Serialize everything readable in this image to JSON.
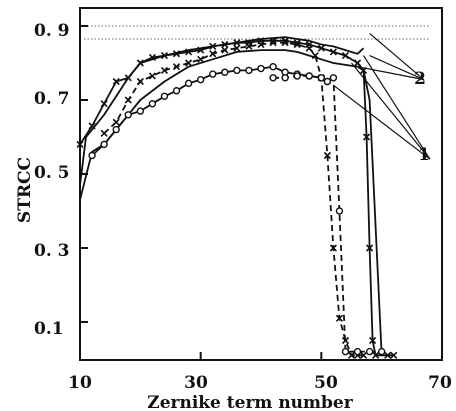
{
  "chart_data": {
    "type": "line",
    "title": "",
    "xlabel": "Zernike term number",
    "ylabel": "STRCC",
    "xlim": [
      10,
      70
    ],
    "ylim": [
      0,
      0.9
    ],
    "xticks": [
      10,
      30,
      50,
      70
    ],
    "xtick_labels": [
      "10",
      "30",
      "50",
      "70"
    ],
    "yticks": [
      0.1,
      0.3,
      0.5,
      0.7,
      0.9
    ],
    "ytick_labels": [
      "0.1",
      "0. 3",
      "0. 5",
      "0. 7",
      "0. 9"
    ],
    "grid": false,
    "legend": "none",
    "reference_lines": [
      0.9,
      0.865
    ],
    "series": [
      {
        "style": "solid",
        "marker": "none",
        "x": [
          10,
          11,
          12,
          14,
          16,
          18,
          20,
          24,
          28,
          32,
          36,
          40,
          44,
          46,
          48,
          50,
          52,
          54,
          56,
          57
        ],
        "y": [
          0.47,
          0.6,
          0.62,
          0.66,
          0.71,
          0.76,
          0.8,
          0.82,
          0.835,
          0.845,
          0.855,
          0.865,
          0.87,
          0.865,
          0.86,
          0.85,
          0.845,
          0.835,
          0.825,
          0.84
        ]
      },
      {
        "style": "solid",
        "marker": "x",
        "x": [
          10,
          12,
          14,
          16,
          18,
          20,
          22,
          24,
          26,
          28,
          30,
          32,
          34,
          36,
          38,
          40,
          42,
          44,
          46,
          48,
          50,
          52,
          54,
          56,
          57,
          57.5,
          58,
          58.5,
          59,
          61,
          62
        ],
        "y": [
          0.58,
          0.63,
          0.69,
          0.75,
          0.76,
          0.8,
          0.815,
          0.82,
          0.825,
          0.83,
          0.835,
          0.845,
          0.85,
          0.855,
          0.855,
          0.86,
          0.86,
          0.86,
          0.855,
          0.85,
          0.84,
          0.83,
          0.82,
          0.8,
          0.78,
          0.6,
          0.3,
          0.05,
          0.01,
          0.01,
          0.01
        ]
      },
      {
        "style": "solid",
        "marker": "none",
        "x": [
          10,
          12,
          14,
          16,
          18,
          20,
          24,
          28,
          32,
          36,
          40,
          44,
          46,
          48,
          50,
          52,
          54,
          56,
          57,
          58,
          60
        ],
        "y": [
          0.43,
          0.56,
          0.58,
          0.62,
          0.66,
          0.7,
          0.75,
          0.79,
          0.81,
          0.83,
          0.835,
          0.835,
          0.83,
          0.82,
          0.81,
          0.8,
          0.795,
          0.79,
          0.78,
          0.7,
          0.01
        ]
      },
      {
        "style": "dashed",
        "marker": "x",
        "x": [
          14,
          16,
          18,
          20,
          22,
          24,
          26,
          28,
          30,
          32,
          34,
          36,
          38,
          40,
          42,
          44,
          46,
          48,
          49,
          50,
          51,
          52,
          53,
          54,
          55,
          56,
          57
        ],
        "y": [
          0.61,
          0.64,
          0.7,
          0.75,
          0.765,
          0.78,
          0.79,
          0.8,
          0.81,
          0.825,
          0.835,
          0.84,
          0.845,
          0.85,
          0.855,
          0.855,
          0.85,
          0.84,
          0.82,
          0.76,
          0.55,
          0.3,
          0.11,
          0.05,
          0.01,
          0.01,
          0.01
        ]
      },
      {
        "style": "solid",
        "marker": "o",
        "x": [
          12,
          14,
          16,
          18,
          20,
          22,
          24,
          26,
          28,
          30,
          32,
          34,
          36,
          38,
          40,
          42,
          44,
          46,
          48,
          50,
          51
        ],
        "y": [
          0.55,
          0.58,
          0.62,
          0.66,
          0.67,
          0.69,
          0.71,
          0.725,
          0.745,
          0.755,
          0.77,
          0.775,
          0.78,
          0.78,
          0.785,
          0.79,
          0.775,
          0.77,
          0.765,
          0.76,
          0.75
        ]
      },
      {
        "style": "dashed",
        "marker": "o",
        "x": [
          42,
          44,
          46,
          48,
          50,
          51,
          52,
          53,
          54,
          56,
          58,
          60
        ],
        "y": [
          0.76,
          0.76,
          0.765,
          0.765,
          0.76,
          0.75,
          0.76,
          0.4,
          0.02,
          0.02,
          0.02,
          0.02
        ]
      }
    ],
    "annotations": [
      {
        "text": "2",
        "x": 67,
        "y": 0.755,
        "targets": [
          [
            58,
            0.88
          ],
          [
            58,
            0.82
          ],
          [
            56,
            0.79
          ]
        ]
      },
      {
        "text": "1",
        "x": 68,
        "y": 0.54,
        "targets": [
          [
            52,
            0.74
          ],
          [
            55,
            0.8
          ],
          [
            57,
            0.82
          ]
        ]
      }
    ]
  }
}
